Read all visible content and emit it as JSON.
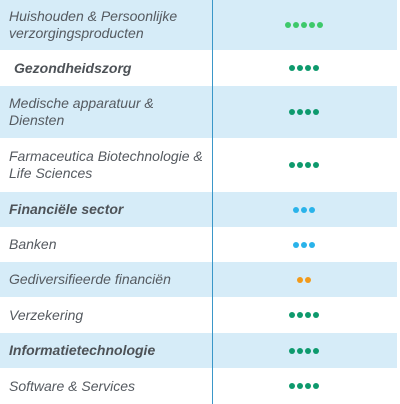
{
  "colors": {
    "light_green": "#3ec96b",
    "dark_green": "#0e9a6d",
    "blue": "#2ab3ea",
    "orange": "#f29a1a",
    "row_shade": "#d6ecf8",
    "divider": "#3a97c9"
  },
  "rows": [
    {
      "label": "Huishouden & Persoonlijke verzorgingsproducten",
      "bold": false,
      "shaded": true,
      "dots": 5,
      "color": "#3ec96b"
    },
    {
      "label": "Gezondheidszorg",
      "bold": true,
      "shaded": false,
      "dots": 4,
      "color": "#0e9a6d"
    },
    {
      "label": "Medische apparatuur & Diensten",
      "bold": false,
      "shaded": true,
      "dots": 4,
      "color": "#0e9a6d"
    },
    {
      "label": "Farmaceutica Biotechnologie & Life Sciences",
      "bold": false,
      "shaded": false,
      "dots": 4,
      "color": "#0e9a6d"
    },
    {
      "label": "Financiële sector",
      "bold": true,
      "shaded": true,
      "dots": 3,
      "color": "#2ab3ea"
    },
    {
      "label": "Banken",
      "bold": false,
      "shaded": false,
      "dots": 3,
      "color": "#2ab3ea"
    },
    {
      "label": "Gediversifieerde financiën",
      "bold": false,
      "shaded": true,
      "dots": 2,
      "color": "#f29a1a"
    },
    {
      "label": "Verzekering",
      "bold": false,
      "shaded": false,
      "dots": 4,
      "color": "#0e9a6d"
    },
    {
      "label": "Informatietechnologie",
      "bold": true,
      "shaded": true,
      "dots": 4,
      "color": "#0e9a6d"
    },
    {
      "label": "Software & Services",
      "bold": false,
      "shaded": false,
      "dots": 4,
      "color": "#0e9a6d"
    }
  ]
}
